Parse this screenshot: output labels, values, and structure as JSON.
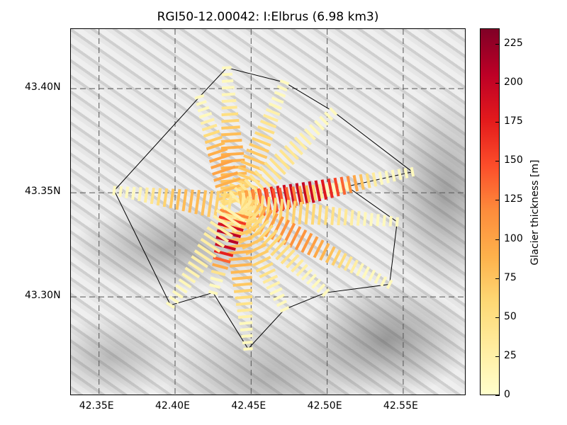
{
  "chart_data": {
    "type": "map",
    "title": "RGI50-12.00042: I:Elbrus (6.98 km3)",
    "xlim": [
      42.3315,
      42.5915
    ],
    "ylim": [
      43.2524,
      43.4286
    ],
    "xticks": [
      {
        "value": 42.35,
        "label": "42.35E"
      },
      {
        "value": 42.4,
        "label": "42.40E"
      },
      {
        "value": 42.45,
        "label": "42.45E"
      },
      {
        "value": 42.5,
        "label": "42.50E"
      },
      {
        "value": 42.55,
        "label": "42.55E"
      }
    ],
    "yticks": [
      {
        "value": 43.4,
        "label": "43.40N"
      },
      {
        "value": 43.35,
        "label": "43.35N"
      },
      {
        "value": 43.3,
        "label": "43.30N"
      }
    ],
    "grid": true,
    "colorbar": {
      "label": "Glacier thickness [m]",
      "range": [
        0,
        235
      ],
      "colormap": "YlOrRd",
      "ticks": [
        "0",
        "25",
        "50",
        "75",
        "100",
        "125",
        "150",
        "175",
        "200",
        "225"
      ],
      "colors": [
        "#ffffcc",
        "#ffeda0",
        "#fed976",
        "#feb24c",
        "#fd8d3c",
        "#fc4e2a",
        "#e31a1c",
        "#bd0026",
        "#800026"
      ]
    },
    "summit": [
      42.44,
      43.343
    ],
    "flowlines": [
      {
        "end": [
          42.434,
          43.41
        ],
        "thickness": 90
      },
      {
        "end": [
          42.472,
          43.403
        ],
        "thickness": 70
      },
      {
        "end": [
          42.416,
          43.396
        ],
        "thickness": 100
      },
      {
        "end": [
          42.36,
          43.351
        ],
        "thickness": 80
      },
      {
        "end": [
          42.504,
          43.389
        ],
        "thickness": 40
      },
      {
        "end": [
          42.556,
          43.36
        ],
        "thickness": 210
      },
      {
        "end": [
          42.513,
          43.353
        ],
        "thickness": 150
      },
      {
        "end": [
          42.546,
          43.336
        ],
        "thickness": 60
      },
      {
        "end": [
          42.541,
          43.306
        ],
        "thickness": 115
      },
      {
        "end": [
          42.499,
          43.302
        ],
        "thickness": 55
      },
      {
        "end": [
          42.472,
          43.294
        ],
        "thickness": 70
      },
      {
        "end": [
          42.448,
          43.275
        ],
        "thickness": 85
      },
      {
        "end": [
          42.425,
          43.302
        ],
        "thickness": 220
      },
      {
        "end": [
          42.397,
          43.296
        ],
        "thickness": 20
      }
    ]
  }
}
